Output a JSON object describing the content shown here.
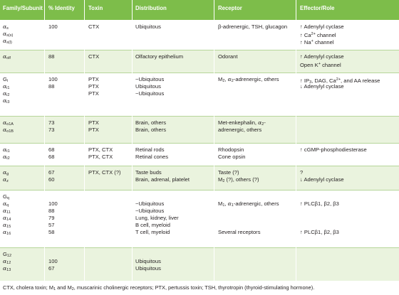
{
  "headers": [
    "Family/Subunit",
    "% Identity",
    "Toxin",
    "Distribution",
    "Receptor",
    "Effector/Role"
  ],
  "rows": [
    {
      "subunit": [
        "αs",
        "αs(s)",
        "αs(l)"
      ],
      "identity": [
        "100"
      ],
      "toxin": [
        "CTX"
      ],
      "distribution": [
        "Ubiquitous"
      ],
      "receptor": [
        "β-adrenergic, TSH, glucagon"
      ],
      "effector": [
        "↑ Adenylyl cyclase",
        "↑ Ca2+ channel",
        "↑ Na+ channel"
      ]
    },
    {
      "subunit": [
        "αolf"
      ],
      "identity": [
        "88"
      ],
      "toxin": [
        "CTX"
      ],
      "distribution": [
        "Olfactory epithelium"
      ],
      "receptor": [
        "Odorant"
      ],
      "effector": [
        "↑ Adenylyl cyclase",
        "Open K+ channel"
      ]
    },
    {
      "subunit": [
        "Gi",
        "αi1",
        "αi2",
        "αi3"
      ],
      "identity": [
        "100",
        "88"
      ],
      "toxin": [
        "PTX",
        "PTX",
        "PTX"
      ],
      "distribution": [
        "~Ubiquitous",
        "Ubiquitous",
        "~Ubiquitous"
      ],
      "receptor": [
        "M2, α2-adrenergic, others"
      ],
      "effector": [
        "↑ IP3, DAG, Ca2+, and AA release",
        "↓ Adenylyl cyclase"
      ]
    },
    {
      "subunit": [
        "αo1A",
        "αo1B"
      ],
      "identity": [
        "73",
        "73"
      ],
      "toxin": [
        "PTX",
        "PTX"
      ],
      "distribution": [
        "Brain, others",
        "Brain, others"
      ],
      "receptor": [
        "Met-enkephalin, α2-",
        "adrenergic, others"
      ],
      "effector": []
    },
    {
      "subunit": [
        "αt1",
        "αt2"
      ],
      "identity": [
        "68",
        "68"
      ],
      "toxin": [
        "PTX, CTX",
        "PTX, CTX"
      ],
      "distribution": [
        "Retinal rods",
        "Retinal cones"
      ],
      "receptor": [
        "Rhodopsin",
        "Cone opsin"
      ],
      "effector": [
        "↑ cGMP-phosphodiesterase"
      ]
    },
    {
      "subunit": [
        "αg",
        "αz"
      ],
      "identity": [
        "67",
        "60"
      ],
      "toxin": [
        "PTX, CTX (?)"
      ],
      "distribution": [
        "Taste buds",
        "Brain, adrenal, platelet"
      ],
      "receptor": [
        "Taste (?)",
        "M2 (?), others (?)"
      ],
      "effector": [
        "?",
        "↓ Adenylyl cyclase"
      ]
    },
    {
      "subunit": [
        "Gq",
        "αq",
        "α11",
        "α14",
        "α15",
        "α16"
      ],
      "identity": [
        "100",
        "88",
        "79",
        "57",
        "58"
      ],
      "toxin": [],
      "distribution": [
        "~Ubiquitous",
        "~Ubiquitous",
        "Lung, kidney, liver",
        "B cell, myeloid",
        "T cell, myeloid"
      ],
      "receptor": [
        "M1, α1-adrenergic, others",
        "Several receptors"
      ],
      "effector": [
        "↑ PLCβ1, β2, β3",
        "↑ PLCβ1, β2, β3"
      ]
    },
    {
      "subunit": [
        "G12",
        "α12",
        "α13"
      ],
      "identity": [
        "100",
        "67"
      ],
      "toxin": [],
      "distribution": [
        "Ubiquitous",
        "Ubiquitous"
      ],
      "receptor": [],
      "effector": []
    }
  ],
  "footnote": "CTX, cholera toxin; M1 and M2, muscarinic cholinergic receptors; PTX, pertussis toxin; TSH, thyrotropin (thyroid-stimulating hormone)."
}
